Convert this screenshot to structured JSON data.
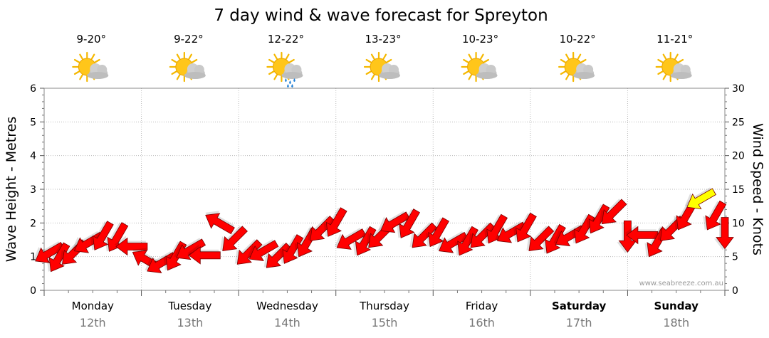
{
  "chart_data": {
    "type": "line",
    "title": "7 day wind & wave forecast for Spreyton",
    "ylabel_left": "Wave Height - Metres",
    "ylabel_right": "Wind Speed - Knots",
    "ylim_left": [
      0,
      6
    ],
    "ylim_right": [
      0,
      30
    ],
    "yticks_left": [
      "0",
      "1",
      "2",
      "3",
      "4",
      "5",
      "6"
    ],
    "yticks_right": [
      "0",
      "5",
      "10",
      "15",
      "20",
      "25",
      "30"
    ],
    "grid": true,
    "credit": "www.seabreeze.com.au",
    "days": [
      {
        "name": "Monday",
        "date": "12th",
        "temp": "9-20°",
        "weather": "partly-cloudy",
        "bold": false
      },
      {
        "name": "Tuesday",
        "date": "13th",
        "temp": "9-22°",
        "weather": "partly-cloudy",
        "bold": false
      },
      {
        "name": "Wednesday",
        "date": "14th",
        "temp": "12-22°",
        "weather": "showers",
        "bold": false
      },
      {
        "name": "Thursday",
        "date": "15th",
        "temp": "13-23°",
        "weather": "partly-cloudy",
        "bold": false
      },
      {
        "name": "Friday",
        "date": "16th",
        "temp": "10-23°",
        "weather": "partly-cloudy",
        "bold": false
      },
      {
        "name": "Saturday",
        "date": "17th",
        "temp": "10-22°",
        "weather": "partly-cloudy",
        "bold": true
      },
      {
        "name": "Sunday",
        "date": "18th",
        "temp": "11-21°",
        "weather": "partly-cloudy",
        "bold": true
      }
    ],
    "series": [
      {
        "name": "Wind Speed - Knots",
        "arrow_color": "#ff0000",
        "strong_arrow_color": "#ffff00",
        "x_day": [
          0.05,
          0.15,
          0.3,
          0.45,
          0.6,
          0.75,
          0.9,
          1.05,
          1.2,
          1.35,
          1.5,
          1.65,
          1.8,
          1.95,
          2.1,
          2.25,
          2.4,
          2.55,
          2.7,
          2.85,
          3.0,
          3.15,
          3.3,
          3.45,
          3.6,
          3.75,
          3.9,
          4.05,
          4.2,
          4.35,
          4.5,
          4.65,
          4.8,
          4.95,
          5.1,
          5.25,
          5.4,
          5.55,
          5.7,
          5.85,
          6.0,
          6.15,
          6.3,
          6.45,
          6.6,
          6.75,
          6.9,
          7.0
        ],
        "knots": [
          5.5,
          4.8,
          5.5,
          7.0,
          8.0,
          7.8,
          6.5,
          4.5,
          4.0,
          5.0,
          6.0,
          5.2,
          10.0,
          7.5,
          5.5,
          5.8,
          5.0,
          6.0,
          7.0,
          9.0,
          10.0,
          7.5,
          7.2,
          8.0,
          10.0,
          9.8,
          8.0,
          8.5,
          7.0,
          7.2,
          8.0,
          9.0,
          8.5,
          9.2,
          7.5,
          7.5,
          8.0,
          9.0,
          10.5,
          11.5,
          8.0,
          8.2,
          7.0,
          9.0,
          11.0,
          13.5,
          11.0,
          8.5
        ],
        "direction_deg": [
          330,
          300,
          315,
          330,
          300,
          300,
          0,
          30,
          330,
          300,
          330,
          0,
          30,
          315,
          315,
          330,
          315,
          300,
          300,
          315,
          300,
          330,
          300,
          315,
          330,
          300,
          315,
          300,
          330,
          300,
          315,
          300,
          330,
          300,
          315,
          300,
          330,
          300,
          300,
          315,
          270,
          0,
          300,
          315,
          300,
          330,
          300,
          270
        ]
      }
    ]
  }
}
